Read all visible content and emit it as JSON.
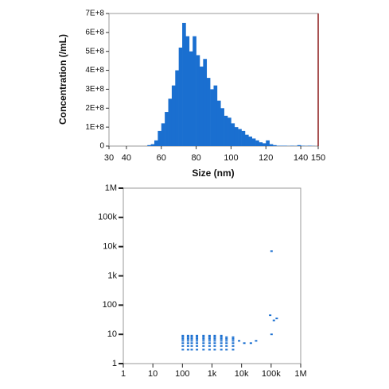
{
  "chart_data": [
    {
      "type": "histogram",
      "xlabel": "Size (nm)",
      "ylabel": "Concentration (/mL)",
      "color": "#1a6fd0",
      "bins": [
        30,
        32,
        34,
        36,
        38,
        40,
        42,
        44,
        46,
        48,
        50,
        52,
        54,
        56,
        58,
        60,
        62,
        64,
        66,
        68,
        70,
        72,
        74,
        76,
        78,
        80,
        82,
        84,
        86,
        88,
        90,
        92,
        94,
        96,
        98,
        100,
        102,
        104,
        106,
        108,
        110,
        112,
        114,
        116,
        118,
        120,
        122,
        124,
        126,
        128,
        130,
        132,
        134,
        136,
        138,
        140,
        142,
        144,
        146,
        148,
        150
      ],
      "counts": [
        0,
        0,
        0,
        0,
        0,
        0,
        0,
        0,
        0,
        0,
        0,
        5000000.0,
        10000000.0,
        30000000.0,
        80000000.0,
        120000000.0,
        180000000.0,
        250000000.0,
        320000000.0,
        400000000.0,
        520000000.0,
        650000000.0,
        580000000.0,
        500000000.0,
        580000000.0,
        480000000.0,
        420000000.0,
        460000000.0,
        360000000.0,
        300000000.0,
        320000000.0,
        240000000.0,
        200000000.0,
        160000000.0,
        150000000.0,
        120000000.0,
        100000000.0,
        90000000.0,
        80000000.0,
        60000000.0,
        50000000.0,
        40000000.0,
        30000000.0,
        20000000.0,
        15000000.0,
        30000000.0,
        10000000.0,
        5000000.0,
        2000000.0,
        2000000.0,
        2000000.0,
        1000000.0,
        2000000.0,
        1000000.0,
        5000000.0,
        2000000.0,
        1000000.0,
        2000000.0,
        1000000.0,
        0
      ],
      "xlim": [
        30,
        150
      ],
      "xticks": [
        30,
        40,
        60,
        80,
        100,
        120,
        140,
        150
      ],
      "ylim": [
        0,
        700000000.0
      ],
      "yticks": [
        0,
        {
          "value": 100000000.0,
          "label": "1E+8"
        },
        {
          "value": 200000000.0,
          "label": "2E+8"
        },
        {
          "value": 300000000.0,
          "label": "3E+8"
        },
        {
          "value": 400000000.0,
          "label": "4E+8"
        },
        {
          "value": 500000000.0,
          "label": "5E+8"
        },
        {
          "value": 600000000.0,
          "label": "6E+8"
        },
        {
          "value": 700000000.0,
          "label": "7E+8"
        }
      ]
    },
    {
      "type": "scatter",
      "xscale": "log",
      "yscale": "log",
      "series": [
        {
          "color": "#1a6fd0",
          "x": [
            100,
            150,
            200,
            300,
            500,
            800,
            1200,
            2000,
            3000,
            5000,
            100,
            150,
            200,
            300,
            500,
            800,
            1200,
            2000,
            3000,
            5000,
            100,
            150,
            200,
            300,
            500,
            800,
            1200,
            2000,
            3000,
            5000,
            100,
            150,
            200,
            300,
            500,
            800,
            1200,
            2000,
            3000,
            5000,
            100,
            150,
            200,
            300,
            500,
            800,
            1200,
            2000,
            3000,
            5000,
            100,
            150,
            200,
            300,
            500,
            800,
            1200,
            2000,
            3000,
            5000,
            100,
            150,
            200,
            300,
            500,
            800,
            1200,
            2000,
            8000,
            12000,
            20000,
            30000,
            100000,
            90000,
            150000,
            120000,
            100000
          ],
          "y": [
            3,
            3,
            3,
            3,
            3,
            3,
            3,
            3,
            3,
            3,
            4,
            4,
            4,
            4,
            4,
            4,
            4,
            4,
            4,
            4,
            5,
            5,
            5,
            5,
            5,
            5,
            5,
            5,
            5,
            5,
            6,
            6,
            6,
            6,
            6,
            6,
            6,
            6,
            6,
            6,
            7,
            7,
            7,
            7,
            7,
            7,
            7,
            7,
            7,
            7,
            8,
            8,
            8,
            8,
            8,
            8,
            8,
            8,
            8,
            8,
            9,
            9,
            9,
            9,
            9,
            9,
            9,
            9,
            6,
            5,
            5,
            6,
            7000,
            45,
            35,
            30,
            10
          ]
        }
      ],
      "xlim": [
        1,
        1000000
      ],
      "ylim": [
        1,
        1000000
      ],
      "xticks": [
        1,
        10,
        100,
        {
          "value": 1000,
          "label": "1k"
        },
        {
          "value": 10000,
          "label": "10k"
        },
        {
          "value": 100000,
          "label": "100k"
        },
        {
          "value": 1000000,
          "label": "1M"
        }
      ],
      "yticks": [
        1,
        10,
        100,
        {
          "value": 1000,
          "label": "1k"
        },
        {
          "value": 10000,
          "label": "10k"
        },
        {
          "value": 100000,
          "label": "100k"
        },
        {
          "value": 1000000,
          "label": "1M"
        }
      ]
    }
  ]
}
